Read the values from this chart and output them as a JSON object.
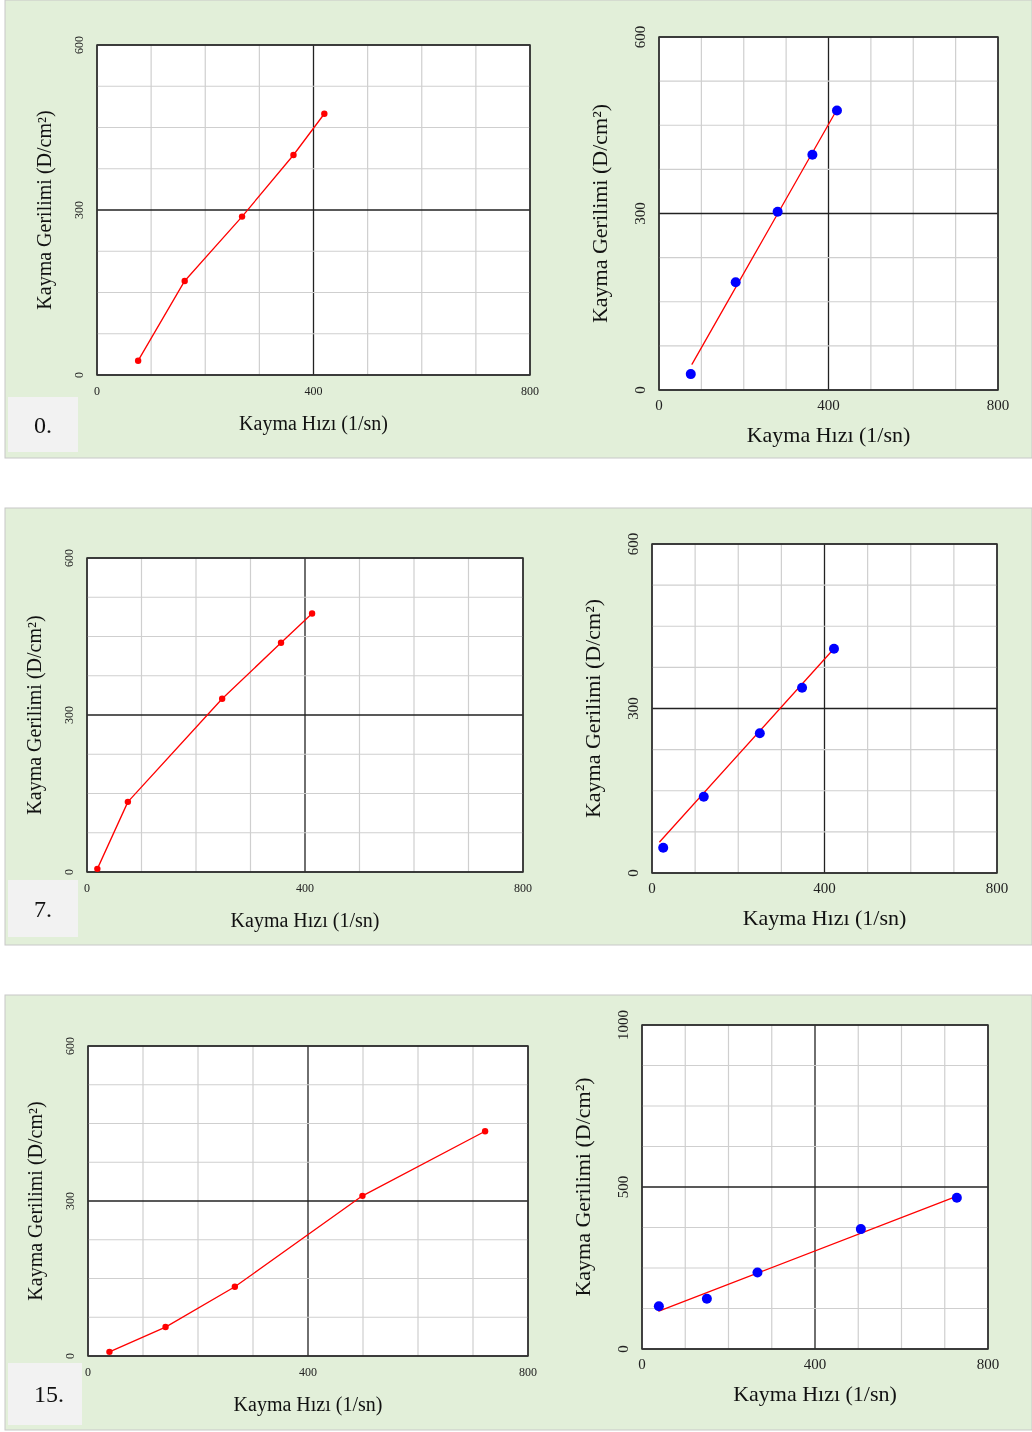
{
  "chart_data": [
    {
      "type": "line",
      "xlabel": "Kayma Hızı (1/sn)",
      "ylabel": "Kayma Gerilimi (D/cm²)",
      "annotations": [
        "0."
      ],
      "xlim": [
        0,
        800
      ],
      "ylim": [
        0,
        600
      ],
      "xticks": [
        0,
        {
          "value": 100,
          "label": null
        },
        {
          "value": 200,
          "label": null
        },
        {
          "value": 300,
          "label": null
        },
        400,
        {
          "value": 500,
          "label": null
        },
        {
          "value": 600,
          "label": null
        },
        {
          "value": 700,
          "label": null
        },
        800
      ],
      "yticks": [
        0,
        {
          "value": 75,
          "label": null
        },
        {
          "value": 150,
          "label": null
        },
        {
          "value": 225,
          "label": null
        },
        300,
        {
          "value": 375,
          "label": null
        },
        {
          "value": 450,
          "label": null
        },
        {
          "value": 525,
          "label": null
        },
        600
      ],
      "grid": true,
      "marker": "circle",
      "series": [
        {
          "color": "#ff0000",
          "x": [
            76,
            162,
            268,
            363,
            420
          ],
          "values": [
            26,
            171,
            288,
            400,
            475
          ]
        }
      ]
    },
    {
      "type": "scatter",
      "xlabel": "Kayma Hızı (1/sn)",
      "ylabel": "Kayma Gerilimi (D/cm²)",
      "xlim": [
        0,
        800
      ],
      "ylim": [
        0,
        600
      ],
      "xticks": [
        0,
        {
          "value": 100,
          "label": null
        },
        {
          "value": 200,
          "label": null
        },
        {
          "value": 300,
          "label": null
        },
        400,
        {
          "value": 500,
          "label": null
        },
        {
          "value": 600,
          "label": null
        },
        {
          "value": 700,
          "label": null
        },
        800
      ],
      "yticks": [
        0,
        {
          "value": 75,
          "label": null
        },
        {
          "value": 150,
          "label": null
        },
        {
          "value": 225,
          "label": null
        },
        300,
        {
          "value": 375,
          "label": null
        },
        {
          "value": 450,
          "label": null
        },
        {
          "value": 525,
          "label": null
        },
        600
      ],
      "grid": true,
      "marker": "circle",
      "series": [
        {
          "type": "line",
          "marker": "none",
          "color": "#ff0000",
          "x": [
            78,
            417
          ],
          "values": [
            44,
            473
          ]
        },
        {
          "color": "#0000ff",
          "x": [
            75,
            181,
            280,
            362,
            420
          ],
          "values": [
            27,
            183,
            303,
            400,
            475
          ]
        }
      ]
    },
    {
      "type": "line",
      "xlabel": "Kayma Hızı (1/sn)",
      "ylabel": "Kayma Gerilimi (D/cm²)",
      "annotations": [
        "7."
      ],
      "xlim": [
        0,
        800
      ],
      "ylim": [
        0,
        600
      ],
      "xticks": [
        0,
        {
          "value": 100,
          "label": null
        },
        {
          "value": 200,
          "label": null
        },
        {
          "value": 300,
          "label": null
        },
        400,
        {
          "value": 500,
          "label": null
        },
        {
          "value": 600,
          "label": null
        },
        {
          "value": 700,
          "label": null
        },
        800
      ],
      "yticks": [
        0,
        {
          "value": 75,
          "label": null
        },
        {
          "value": 150,
          "label": null
        },
        {
          "value": 225,
          "label": null
        },
        300,
        {
          "value": 375,
          "label": null
        },
        {
          "value": 450,
          "label": null
        },
        {
          "value": 525,
          "label": null
        },
        600
      ],
      "grid": true,
      "marker": "circle",
      "series": [
        {
          "color": "#ff0000",
          "x": [
            19,
            75,
            248,
            356,
            413
          ],
          "values": [
            6,
            134,
            331,
            438,
            494
          ]
        }
      ]
    },
    {
      "type": "scatter",
      "xlabel": "Kayma Hızı (1/sn)",
      "ylabel": "Kayma Gerilimi (D/cm²)",
      "xlim": [
        0,
        800
      ],
      "ylim": [
        0,
        600
      ],
      "xticks": [
        0,
        {
          "value": 100,
          "label": null
        },
        {
          "value": 200,
          "label": null
        },
        {
          "value": 300,
          "label": null
        },
        400,
        {
          "value": 500,
          "label": null
        },
        {
          "value": 600,
          "label": null
        },
        {
          "value": 700,
          "label": null
        },
        800
      ],
      "yticks": [
        0,
        {
          "value": 75,
          "label": null
        },
        {
          "value": 150,
          "label": null
        },
        {
          "value": 225,
          "label": null
        },
        300,
        {
          "value": 375,
          "label": null
        },
        {
          "value": 450,
          "label": null
        },
        {
          "value": 525,
          "label": null
        },
        600
      ],
      "grid": true,
      "marker": "circle",
      "series": [
        {
          "type": "line",
          "marker": "none",
          "color": "#ff0000",
          "x": [
            18,
            416
          ],
          "values": [
            57,
            404
          ]
        },
        {
          "color": "#0000ff",
          "x": [
            26,
            120,
            250,
            348,
            422
          ],
          "values": [
            46,
            139,
            255,
            338,
            409
          ]
        }
      ]
    },
    {
      "type": "line",
      "xlabel": "Kayma Hızı (1/sn)",
      "ylabel": "Kayma Gerilimi (D/cm²)",
      "annotations": [
        "15."
      ],
      "xlim": [
        0,
        800
      ],
      "ylim": [
        0,
        600
      ],
      "xticks": [
        0,
        {
          "value": 100,
          "label": null
        },
        {
          "value": 200,
          "label": null
        },
        {
          "value": 300,
          "label": null
        },
        400,
        {
          "value": 500,
          "label": null
        },
        {
          "value": 600,
          "label": null
        },
        {
          "value": 700,
          "label": null
        },
        800
      ],
      "yticks": [
        0,
        {
          "value": 75,
          "label": null
        },
        {
          "value": 150,
          "label": null
        },
        {
          "value": 225,
          "label": null
        },
        300,
        {
          "value": 375,
          "label": null
        },
        {
          "value": 450,
          "label": null
        },
        {
          "value": 525,
          "label": null
        },
        600
      ],
      "grid": true,
      "marker": "circle",
      "series": [
        {
          "color": "#ff0000",
          "x": [
            39,
            141,
            267,
            499,
            722
          ],
          "values": [
            8,
            56,
            134,
            310,
            435
          ]
        }
      ]
    },
    {
      "type": "scatter",
      "xlabel": "Kayma Hızı (1/sn)",
      "ylabel": "Kayma Gerilimi (D/cm²)",
      "xlim": [
        0,
        800
      ],
      "ylim": [
        0,
        1000
      ],
      "xticks": [
        0,
        {
          "value": 100,
          "label": null
        },
        {
          "value": 200,
          "label": null
        },
        {
          "value": 300,
          "label": null
        },
        400,
        {
          "value": 500,
          "label": null
        },
        {
          "value": 600,
          "label": null
        },
        {
          "value": 700,
          "label": null
        },
        800
      ],
      "yticks": [
        0,
        {
          "value": 125,
          "label": null
        },
        {
          "value": 250,
          "label": null
        },
        {
          "value": 375,
          "label": null
        },
        500,
        {
          "value": 625,
          "label": null
        },
        {
          "value": 750,
          "label": null
        },
        {
          "value": 875,
          "label": null
        },
        1000
      ],
      "grid": true,
      "marker": "circle",
      "series": [
        {
          "type": "line",
          "marker": "none",
          "color": "#ff0000",
          "x": [
            39,
            727
          ],
          "values": [
            117,
            471
          ]
        },
        {
          "color": "#0000ff",
          "x": [
            39,
            150,
            267,
            506,
            728
          ],
          "values": [
            132,
            155,
            236,
            370,
            467
          ]
        }
      ]
    }
  ]
}
